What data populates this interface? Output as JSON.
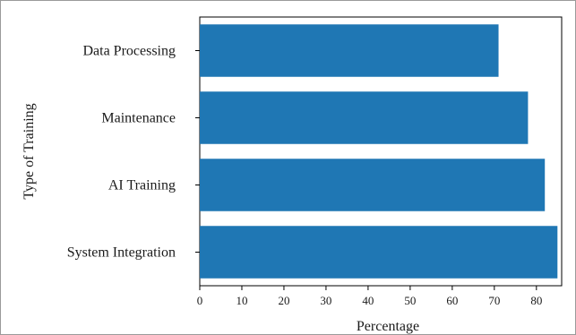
{
  "chart_data": {
    "type": "bar",
    "orientation": "horizontal",
    "categories": [
      "Data Processing",
      "Maintenance",
      "AI Training",
      "System Integration"
    ],
    "values": [
      71,
      78,
      82,
      85
    ],
    "xlabel": "Percentage",
    "ylabel": "Type of Training",
    "xlim": [
      0,
      86
    ],
    "xticks": [
      0,
      10,
      20,
      30,
      40,
      50,
      60,
      70,
      80
    ],
    "bar_color": "#1f77b4",
    "grid": false,
    "legend": "none"
  }
}
